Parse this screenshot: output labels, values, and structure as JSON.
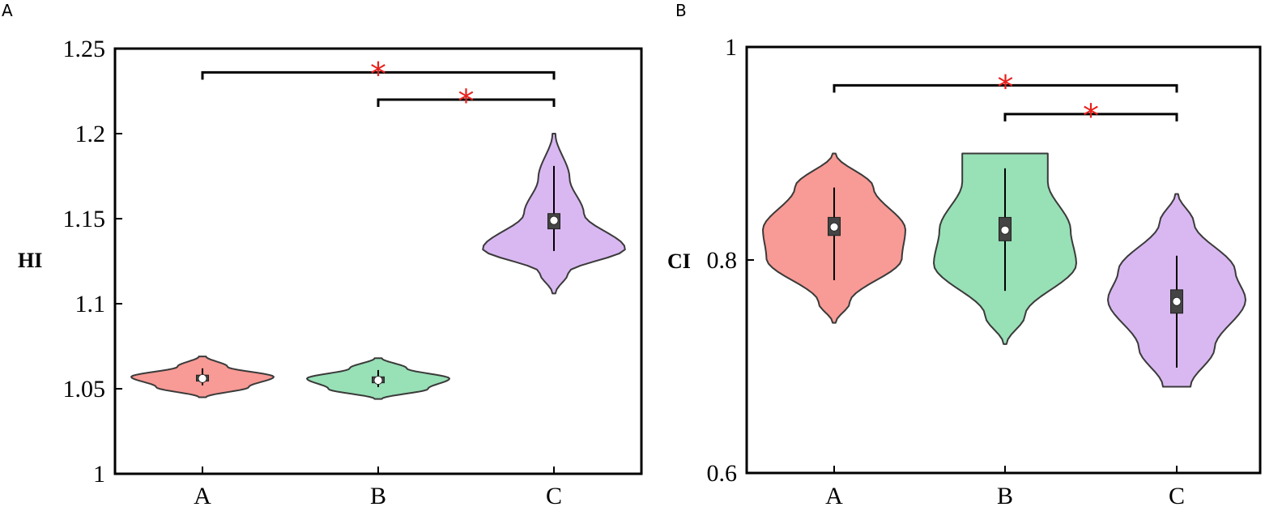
{
  "colors": {
    "A": "#f89a95",
    "B": "#98e0b6",
    "C": "#d9b8f2",
    "outline": "#3a3a3a",
    "box": "#444444",
    "significance": "#e8211c"
  },
  "chart_data": [
    {
      "panel": "A",
      "type": "violin",
      "ylabel": "HI",
      "categories": [
        "A",
        "B",
        "C"
      ],
      "ylim": [
        1,
        1.25
      ],
      "yticks": [
        "1",
        "1.05",
        "1.1",
        "1.15",
        "1.2",
        "1.25"
      ],
      "series": [
        {
          "category": "A",
          "min": 1.045,
          "max": 1.069,
          "whisker": [
            1.052,
            1.062
          ],
          "q1": 1.0545,
          "q3": 1.058,
          "median": 1.056
        },
        {
          "category": "B",
          "min": 1.044,
          "max": 1.068,
          "whisker": [
            1.051,
            1.061
          ],
          "q1": 1.0535,
          "q3": 1.057,
          "median": 1.055
        },
        {
          "category": "C",
          "min": 1.106,
          "max": 1.2,
          "whisker": [
            1.131,
            1.181
          ],
          "q1": 1.144,
          "q3": 1.153,
          "median": 1.149
        }
      ],
      "significance": [
        {
          "from": "A",
          "to": "C",
          "y": 1.236,
          "label": "*"
        },
        {
          "from": "B",
          "to": "C",
          "y": 1.22,
          "label": "*"
        }
      ]
    },
    {
      "panel": "B",
      "type": "violin",
      "ylabel": "CI",
      "categories": [
        "A",
        "B",
        "C"
      ],
      "ylim": [
        0.6,
        1
      ],
      "yticks": [
        "0.6",
        "0.8",
        "1"
      ],
      "series": [
        {
          "category": "A",
          "min": 0.741,
          "max": 0.9,
          "whisker": [
            0.781,
            0.868
          ],
          "q1": 0.823,
          "q3": 0.84,
          "median": 0.831
        },
        {
          "category": "B",
          "min": 0.721,
          "max": 0.9,
          "whisker": [
            0.771,
            0.886
          ],
          "q1": 0.818,
          "q3": 0.84,
          "median": 0.828
        },
        {
          "category": "C",
          "min": 0.681,
          "max": 0.862,
          "whisker": [
            0.699,
            0.804
          ],
          "q1": 0.75,
          "q3": 0.772,
          "median": 0.761
        }
      ],
      "significance": [
        {
          "from": "A",
          "to": "C",
          "y": 0.964,
          "label": "*"
        },
        {
          "from": "B",
          "to": "C",
          "y": 0.937,
          "label": "*"
        }
      ]
    }
  ]
}
